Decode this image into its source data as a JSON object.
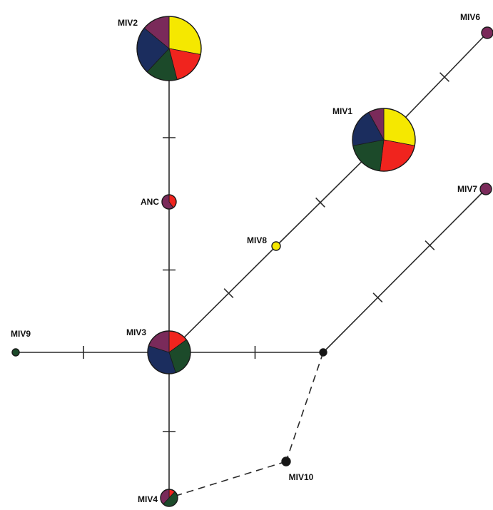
{
  "colors": {
    "yellow": "#f5e800",
    "red": "#f0241e",
    "green": "#1c4a2a",
    "navy": "#1b2d5e",
    "purple": "#7a2a5a",
    "black": "#161616",
    "line": "#2a2a2a"
  },
  "nodes": [
    {
      "id": "MIV2",
      "label": "MIV2",
      "slices": [
        [
          "yellow",
          28
        ],
        [
          "red",
          18
        ],
        [
          "green",
          16
        ],
        [
          "navy",
          24
        ],
        [
          "purple",
          14
        ]
      ]
    },
    {
      "id": "MIV6",
      "label": "MIV6",
      "slices": [
        [
          "purple",
          100
        ]
      ]
    },
    {
      "id": "MIV1",
      "label": "MIV1",
      "slices": [
        [
          "yellow",
          28
        ],
        [
          "red",
          24
        ],
        [
          "green",
          20
        ],
        [
          "navy",
          20
        ],
        [
          "purple",
          8
        ]
      ]
    },
    {
      "id": "ANC",
      "label": "ANC",
      "slices": [
        [
          "red",
          40
        ],
        [
          "purple",
          60
        ]
      ]
    },
    {
      "id": "MIV7",
      "label": "MIV7",
      "slices": [
        [
          "purple",
          100
        ]
      ]
    },
    {
      "id": "MIV8",
      "label": "MIV8",
      "slices": [
        [
          "yellow",
          100
        ]
      ]
    },
    {
      "id": "MIV9",
      "label": "MIV9",
      "slices": [
        [
          "green",
          100
        ]
      ]
    },
    {
      "id": "MIV3",
      "label": "MIV3",
      "slices": [
        [
          "red",
          15
        ],
        [
          "green",
          30
        ],
        [
          "navy",
          35
        ],
        [
          "purple",
          20
        ]
      ]
    },
    {
      "id": "J1",
      "label": "",
      "slices": [
        [
          "black",
          100
        ]
      ]
    },
    {
      "id": "MIV10",
      "label": "MIV10",
      "slices": [
        [
          "black",
          100
        ]
      ]
    },
    {
      "id": "MIV4",
      "label": "MIV4",
      "slices": [
        [
          "red",
          12
        ],
        [
          "green",
          50
        ],
        [
          "purple",
          38
        ]
      ]
    }
  ],
  "edges": [
    {
      "from": "MIV2",
      "to": "ANC",
      "mutations": 1,
      "dashed": false
    },
    {
      "from": "ANC",
      "to": "MIV3",
      "mutations": 1,
      "dashed": false
    },
    {
      "from": "MIV3",
      "to": "MIV8",
      "mutations": 1,
      "dashed": false
    },
    {
      "from": "MIV8",
      "to": "MIV1",
      "mutations": 1,
      "dashed": false
    },
    {
      "from": "MIV1",
      "to": "MIV6",
      "mutations": 1,
      "dashed": false
    },
    {
      "from": "MIV9",
      "to": "MIV3",
      "mutations": 1,
      "dashed": false
    },
    {
      "from": "MIV3",
      "to": "J1",
      "mutations": 1,
      "dashed": false
    },
    {
      "from": "J1",
      "to": "MIV7",
      "mutations": 2,
      "dashed": false
    },
    {
      "from": "MIV3",
      "to": "MIV4",
      "mutations": 1,
      "dashed": false
    },
    {
      "from": "J1",
      "to": "MIV10",
      "mutations": 0,
      "dashed": true
    },
    {
      "from": "MIV10",
      "to": "MIV4",
      "mutations": 0,
      "dashed": true
    }
  ]
}
